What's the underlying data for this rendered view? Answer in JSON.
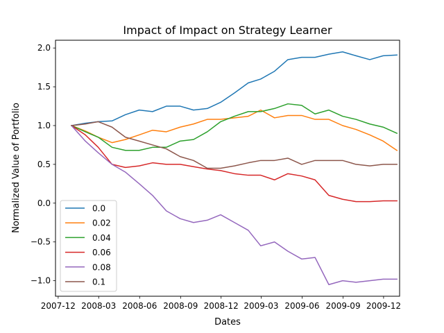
{
  "chart_data": {
    "type": "line",
    "title": "Impact of Impact on Strategy Learner",
    "xlabel": "Dates",
    "ylabel": "Normalized Value of Portfolio",
    "x": [
      "2007-12-31",
      "2008-01-31",
      "2008-02-29",
      "2008-03-31",
      "2008-04-30",
      "2008-05-31",
      "2008-06-30",
      "2008-07-31",
      "2008-08-31",
      "2008-09-30",
      "2008-10-31",
      "2008-11-30",
      "2008-12-31",
      "2009-01-31",
      "2009-02-28",
      "2009-03-31",
      "2009-04-30",
      "2009-05-31",
      "2009-06-30",
      "2009-07-31",
      "2009-08-31",
      "2009-09-30",
      "2009-10-31",
      "2009-11-30",
      "2009-12-31"
    ],
    "xticks": [
      "2007-12",
      "2008-03",
      "2008-06",
      "2008-09",
      "2008-12",
      "2009-03",
      "2009-06",
      "2009-09",
      "2009-12"
    ],
    "xtick_dates": [
      "2007-12-01",
      "2008-03-01",
      "2008-06-01",
      "2008-09-01",
      "2008-12-01",
      "2009-03-01",
      "2009-06-01",
      "2009-09-01",
      "2009-12-01"
    ],
    "xlim": [
      "2007-11-25",
      "2010-01-06"
    ],
    "ylim": [
      -1.2,
      2.1
    ],
    "yticks": [
      -1.0,
      -0.5,
      0.0,
      0.5,
      1.0,
      1.5,
      2.0
    ],
    "ytick_labels": [
      "−1.0",
      "−0.5",
      "0.0",
      "0.5",
      "1.0",
      "1.5",
      "2.0"
    ],
    "legend_position": "lower-left",
    "grid": false,
    "series": [
      {
        "name": "0.0",
        "color": "#1f77b4",
        "values": [
          1.0,
          1.03,
          1.05,
          1.06,
          1.14,
          1.2,
          1.18,
          1.25,
          1.25,
          1.2,
          1.22,
          1.3,
          1.42,
          1.55,
          1.6,
          1.7,
          1.85,
          1.88,
          1.88,
          1.92,
          1.95,
          1.9,
          1.85,
          1.9,
          1.91
        ]
      },
      {
        "name": "0.02",
        "color": "#ff7f0e",
        "values": [
          1.0,
          0.93,
          0.85,
          0.78,
          0.82,
          0.88,
          0.94,
          0.92,
          0.98,
          1.02,
          1.08,
          1.08,
          1.1,
          1.12,
          1.2,
          1.1,
          1.13,
          1.13,
          1.08,
          1.08,
          1.0,
          0.95,
          0.88,
          0.8,
          0.68
        ]
      },
      {
        "name": "0.04",
        "color": "#2ca02c",
        "values": [
          1.0,
          0.92,
          0.85,
          0.72,
          0.68,
          0.68,
          0.72,
          0.72,
          0.8,
          0.82,
          0.92,
          1.05,
          1.12,
          1.18,
          1.18,
          1.22,
          1.28,
          1.26,
          1.15,
          1.2,
          1.12,
          1.08,
          1.02,
          0.98,
          0.9
        ]
      },
      {
        "name": "0.06",
        "color": "#d62728",
        "values": [
          1.0,
          0.88,
          0.72,
          0.5,
          0.46,
          0.48,
          0.52,
          0.5,
          0.5,
          0.47,
          0.44,
          0.42,
          0.38,
          0.36,
          0.36,
          0.3,
          0.38,
          0.35,
          0.3,
          0.1,
          0.05,
          0.02,
          0.02,
          0.03,
          0.03
        ]
      },
      {
        "name": "0.08",
        "color": "#9467bd",
        "values": [
          1.0,
          0.8,
          0.65,
          0.5,
          0.4,
          0.25,
          0.1,
          -0.1,
          -0.2,
          -0.25,
          -0.22,
          -0.15,
          -0.25,
          -0.35,
          -0.55,
          -0.5,
          -0.62,
          -0.72,
          -0.7,
          -1.05,
          -1.0,
          -1.02,
          -1.0,
          -0.98,
          -0.98
        ]
      },
      {
        "name": "0.1",
        "color": "#8c564b",
        "values": [
          1.0,
          1.02,
          1.05,
          0.98,
          0.85,
          0.8,
          0.75,
          0.7,
          0.6,
          0.55,
          0.45,
          0.45,
          0.48,
          0.52,
          0.55,
          0.55,
          0.58,
          0.5,
          0.55,
          0.55,
          0.55,
          0.5,
          0.48,
          0.5,
          0.5
        ]
      }
    ]
  }
}
